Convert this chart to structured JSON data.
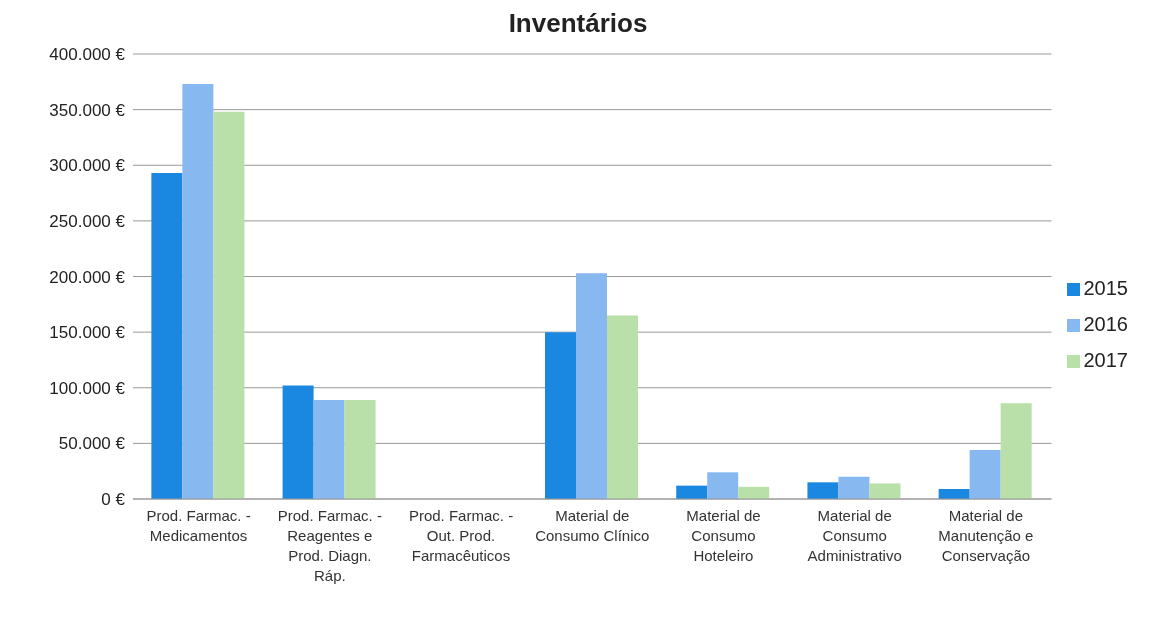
{
  "chart_data": {
    "type": "bar",
    "title": "Inventários",
    "categories": [
      "Prod. Farmac. - Medicamentos",
      "Prod. Farmac. - Reagentes e Prod. Diagn. Ráp.",
      "Prod. Farmac. - Out. Prod. Farmacêuticos",
      "Material de Consumo Clínico",
      "Material de Consumo Hoteleiro",
      "Material de Consumo Administrativo",
      "Material de Manutenção e Conservação"
    ],
    "series": [
      {
        "name": "2015",
        "color": "#1a87e0",
        "values": [
          293000,
          102000,
          0,
          150000,
          12000,
          15000,
          9000
        ]
      },
      {
        "name": "2016",
        "color": "#88b8f0",
        "values": [
          373000,
          89000,
          0,
          203000,
          24000,
          20000,
          44000
        ]
      },
      {
        "name": "2017",
        "color": "#b9e0a8",
        "values": [
          348000,
          89000,
          0,
          165000,
          11000,
          14000,
          86000
        ]
      }
    ],
    "ylim": [
      0,
      400000
    ],
    "yticks": [
      {
        "value": 0,
        "label": "0 €"
      },
      {
        "value": 50000,
        "label": "50.000 €"
      },
      {
        "value": 100000,
        "label": "100.000 €"
      },
      {
        "value": 150000,
        "label": "150.000 €"
      },
      {
        "value": 200000,
        "label": "200.000 €"
      },
      {
        "value": 250000,
        "label": "250.000 €"
      },
      {
        "value": 300000,
        "label": "300.000 €"
      },
      {
        "value": 350000,
        "label": "350.000 €"
      },
      {
        "value": 400000,
        "label": "400.000 €"
      }
    ],
    "grid": "y",
    "legend": "right"
  }
}
